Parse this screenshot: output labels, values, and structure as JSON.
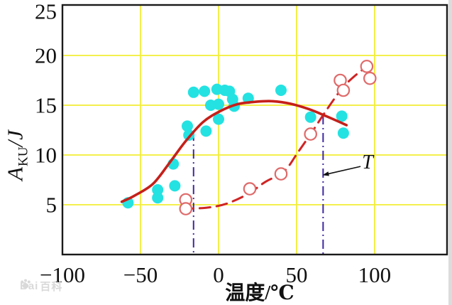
{
  "page": {
    "background": "#ffffff"
  },
  "chart": {
    "ylabel": {
      "main": "A",
      "sub": "KU",
      "unit": "/J"
    },
    "xlabel": "温度/℃",
    "t_label": "T",
    "watermark": {
      "prefix": "Bai",
      "suffix": "百科",
      "color": "#d9d9d9"
    },
    "colors": {
      "grid": "#f2ee35",
      "border": "#1a1a1a",
      "filled_point": "#24e2e2",
      "solid_curve": "#c5201a",
      "dashed_curve": "#d02424",
      "open_point_stroke": "#e06a6a",
      "vline": "#3f28a0",
      "tick_text": "#111111",
      "edge_strip": "#dcdcdc"
    }
  },
  "chart_data": {
    "type": "scatter",
    "title": "",
    "xlabel": "温度/℃",
    "ylabel": "A_KU/J",
    "xlim": [
      -100,
      146.4
    ],
    "ylim": [
      0,
      25.07
    ],
    "x_ticks": [
      -100,
      -50,
      0,
      50,
      100
    ],
    "x_tick_labels": [
      "−100",
      "−50",
      "0",
      "50",
      "100"
    ],
    "y_ticks": [
      25,
      20,
      15,
      10,
      5
    ],
    "y_tick_labels": [
      "25",
      "20",
      "15",
      "10",
      "5"
    ],
    "grid": true,
    "legend": "none",
    "series": [
      {
        "name": "filled-scatter",
        "type": "scatter",
        "marker": "filled-circle",
        "points": [
          [
            -58,
            5.2
          ],
          [
            -39,
            6.5
          ],
          [
            -39,
            5.7
          ],
          [
            -29,
            9.1
          ],
          [
            -28,
            6.9
          ],
          [
            -20,
            12.9
          ],
          [
            -19,
            12.0
          ],
          [
            -16,
            16.3
          ],
          [
            -9,
            16.4
          ],
          [
            -8,
            12.4
          ],
          [
            -5,
            15.0
          ],
          [
            -1,
            16.6
          ],
          [
            0,
            15.1
          ],
          [
            0,
            13.6
          ],
          [
            4,
            16.5
          ],
          [
            7,
            16.4
          ],
          [
            9,
            15.6
          ],
          [
            10,
            14.9
          ],
          [
            19,
            15.7
          ],
          [
            40,
            16.5
          ],
          [
            59,
            13.8
          ],
          [
            79,
            13.9
          ],
          [
            80,
            12.2
          ]
        ]
      },
      {
        "name": "open-scatter",
        "type": "scatter",
        "marker": "open-circle",
        "points": [
          [
            -21,
            5.5
          ],
          [
            -21,
            4.6
          ],
          [
            20,
            6.6
          ],
          [
            40,
            8.1
          ],
          [
            59,
            12.1
          ],
          [
            78,
            17.5
          ],
          [
            80,
            16.5
          ],
          [
            95,
            18.9
          ],
          [
            97,
            17.7
          ]
        ]
      },
      {
        "name": "solid-curve",
        "type": "line",
        "dash": "solid",
        "points": [
          [
            -62,
            5.3
          ],
          [
            -54,
            5.9
          ],
          [
            -42,
            7.1
          ],
          [
            -31,
            9.3
          ],
          [
            -21,
            11.4
          ],
          [
            -10,
            13.3
          ],
          [
            1,
            14.4
          ],
          [
            12,
            15.1
          ],
          [
            24,
            15.35
          ],
          [
            35,
            15.4
          ],
          [
            46,
            15.15
          ],
          [
            58,
            14.6
          ],
          [
            69,
            13.9
          ],
          [
            82,
            13.0
          ]
        ]
      },
      {
        "name": "dashed-curve",
        "type": "line",
        "dash": "dashed",
        "points": [
          [
            -23,
            4.6
          ],
          [
            -8,
            4.7
          ],
          [
            5,
            5.1
          ],
          [
            19,
            6.1
          ],
          [
            30,
            7.3
          ],
          [
            42,
            8.35
          ],
          [
            51,
            10.3
          ],
          [
            59,
            12.1
          ],
          [
            67,
            14.0
          ],
          [
            74,
            15.6
          ],
          [
            80,
            16.85
          ],
          [
            87,
            17.9
          ],
          [
            95,
            18.9
          ],
          [
            98,
            19.3
          ]
        ]
      }
    ],
    "annotations": {
      "vlines": [
        {
          "x": -16,
          "y0": 0,
          "y1": 12.35
        },
        {
          "x": 67,
          "y0": 0,
          "y1": 14.0
        }
      ],
      "t_label": {
        "text": "T",
        "x": 95,
        "y": 9.3
      },
      "arrow": {
        "from_x": 91,
        "from_y": 8.85,
        "to_x": 68.8,
        "to_y": 8.05
      }
    }
  }
}
